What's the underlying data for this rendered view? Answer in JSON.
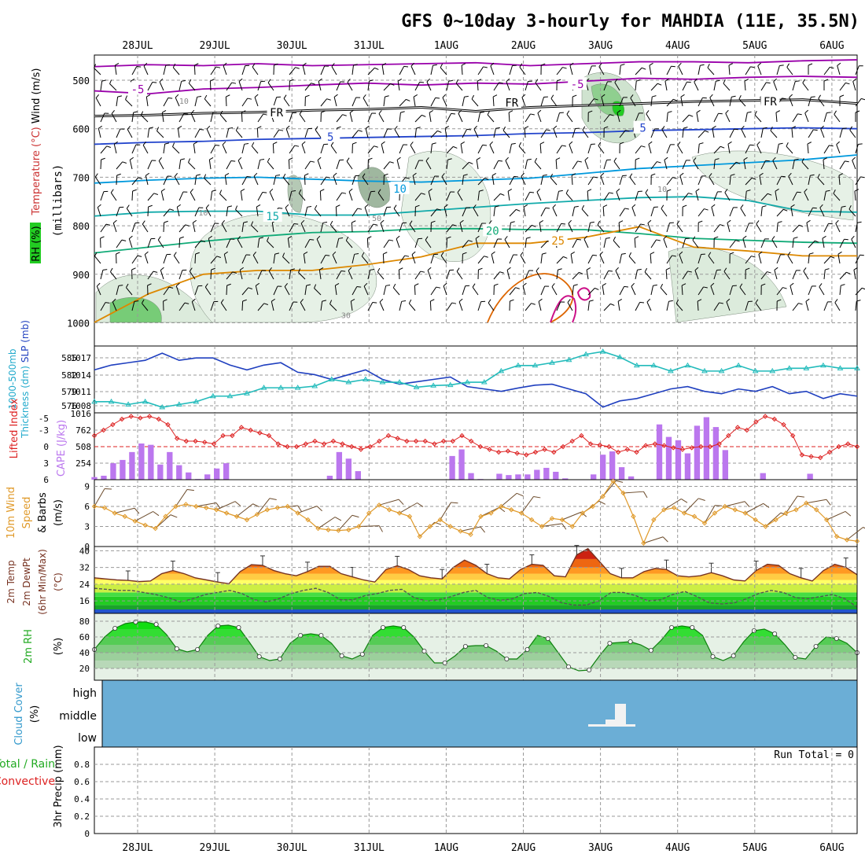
{
  "title": "GFS 0~10day 3-hourly for MAHDIA (11E, 35.5N)",
  "dates": [
    "28JUL",
    "29JUL",
    "30JUL",
    "31JUL",
    "1AUG",
    "2AUG",
    "3AUG",
    "4AUG",
    "5AUG",
    "6AUG"
  ],
  "colors": {
    "frame": "#000000",
    "grid": "#999999",
    "cloud": "#6baed6",
    "rh_dark": "#22cc22"
  },
  "chart_data": [
    {
      "type": "contour",
      "panel": "upper-air",
      "ylabel_parts": [
        "RH (%)",
        "Temperature (°C)",
        "Wind (m/s)",
        "(millibars)"
      ],
      "pressure_ticks": [
        "500",
        "600",
        "700",
        "800",
        "900",
        "1000"
      ],
      "pressure_range": [
        450,
        1050
      ],
      "isotherm_labels": [
        {
          "text": "-5",
          "value": -5,
          "day": 0.0,
          "p": 520,
          "color": "#9900aa"
        },
        {
          "text": "-5",
          "value": -5,
          "day": 5.7,
          "p": 510,
          "color": "#9900aa"
        },
        {
          "text": "FR",
          "value": 0,
          "day": 1.8,
          "p": 568,
          "color": "#000000"
        },
        {
          "text": "FR",
          "value": 0,
          "day": 4.85,
          "p": 548,
          "color": "#000000"
        },
        {
          "text": "FR",
          "value": 0,
          "day": 8.2,
          "p": 545,
          "color": "#000000"
        },
        {
          "text": "5",
          "value": 5,
          "day": 2.5,
          "p": 618,
          "color": "#2244cc"
        },
        {
          "text": "5",
          "value": 5,
          "day": 6.55,
          "p": 600,
          "color": "#2244cc"
        },
        {
          "text": "10",
          "value": 10,
          "day": 3.4,
          "p": 725,
          "color": "#0099dd"
        },
        {
          "text": "15",
          "value": 15,
          "day": 1.75,
          "p": 782,
          "color": "#11aaaa"
        },
        {
          "text": "20",
          "value": 20,
          "day": 4.6,
          "p": 812,
          "color": "#11aa77"
        },
        {
          "text": "25",
          "value": 25,
          "day": 5.45,
          "p": 832,
          "color": "#dd8800"
        }
      ],
      "isotherms": [
        {
          "value": -7,
          "color": "#9900aa",
          "p": [
            472,
            468,
            470,
            466,
            470,
            468,
            466,
            464,
            470,
            466,
            462,
            462,
            464,
            460,
            458
          ]
        },
        {
          "value": -5,
          "color": "#9900aa",
          "p": [
            522,
            528,
            518,
            515,
            510,
            506,
            510,
            506,
            508,
            502,
            496,
            498,
            494,
            492,
            494
          ]
        },
        {
          "value": 0,
          "color": "#000000",
          "p": [
            574,
            572,
            568,
            566,
            562,
            560,
            556,
            564,
            556,
            552,
            548,
            544,
            542,
            540,
            548
          ]
        },
        {
          "value": 5,
          "color": "#2244cc",
          "p": [
            632,
            628,
            626,
            622,
            620,
            618,
            616,
            614,
            610,
            608,
            604,
            602,
            600,
            598,
            600
          ]
        },
        {
          "value": 10,
          "color": "#0099dd",
          "p": [
            712,
            706,
            702,
            700,
            704,
            708,
            710,
            706,
            702,
            692,
            682,
            676,
            670,
            664,
            654
          ]
        },
        {
          "value": 15,
          "color": "#11aaaa",
          "p": [
            780,
            772,
            770,
            770,
            778,
            778,
            770,
            762,
            754,
            748,
            742,
            740,
            748,
            770,
            772
          ]
        },
        {
          "value": 20,
          "color": "#11aa77",
          "p": [
            856,
            844,
            832,
            822,
            814,
            812,
            806,
            806,
            808,
            808,
            816,
            826,
            830,
            834,
            836
          ]
        },
        {
          "value": 25,
          "color": "#dd8800",
          "p": [
            1040,
            940,
            900,
            892,
            892,
            880,
            864,
            836,
            836,
            824,
            802,
            844,
            852,
            862,
            862
          ]
        }
      ],
      "rh_blob_labels": [
        {
          "text": "10",
          "day": 0.6,
          "p": 542
        },
        {
          "text": "10",
          "day": 0.85,
          "p": 772
        },
        {
          "text": "50",
          "day": 3.1,
          "p": 784
        },
        {
          "text": "10",
          "day": 6.8,
          "p": 724
        },
        {
          "text": "30",
          "day": 2.7,
          "p": 984
        }
      ]
    },
    {
      "type": "line",
      "panel": "thickness-slp",
      "ylabel_parts": [
        "1000-500mb",
        "Thickness (dm)",
        "SLP (mb)"
      ],
      "left_ticks": [
        "585",
        "582",
        "579",
        "576"
      ],
      "right_ticks": [
        "1017",
        "1014",
        "1011",
        "1008"
      ],
      "series": [
        {
          "name": "SLP",
          "color": "#1f3fbf",
          "range": [
            1005,
            1019
          ],
          "values": [
            1014,
            1015,
            1015.5,
            1016,
            1017.5,
            1016,
            1016.5,
            1016.5,
            1015,
            1014,
            1015,
            1015.5,
            1013.5,
            1013,
            1012,
            1013,
            1014,
            1012,
            1011,
            1011.5,
            1012,
            1012.5,
            1010.5,
            1010,
            1009.5,
            1010.2,
            1010.8,
            1011,
            1010,
            1009,
            1006.2,
            1007.5,
            1008,
            1009,
            1010,
            1010.5,
            1009.5,
            1009,
            1010,
            1009.5,
            1010.5,
            1009,
            1009.5,
            1008,
            1009,
            1008.5
          ]
        },
        {
          "name": "Thickness",
          "color": "#22bbbb",
          "range": [
            575,
            587
          ],
          "values": [
            577,
            577,
            576.5,
            577,
            576,
            576.5,
            577,
            578,
            578,
            578.5,
            579.5,
            579.5,
            579.5,
            579.8,
            581,
            580.5,
            581,
            580.5,
            580.5,
            579.6,
            579.9,
            580,
            580.5,
            580.5,
            582.5,
            583.5,
            583.5,
            584,
            584.5,
            585.5,
            586,
            585,
            583.5,
            583.5,
            582.5,
            583.5,
            582.5,
            582.5,
            583.5,
            582.5,
            582.5,
            583,
            583,
            583.5,
            583,
            583
          ]
        }
      ]
    },
    {
      "type": "bar-line",
      "panel": "cape-li",
      "ylabel_parts": [
        "Lifted Index",
        "CAPE (J/kg)"
      ],
      "left_ticks": [
        "-5",
        "-3",
        "0",
        "3",
        "6"
      ],
      "right_ticks": [
        "762",
        "508",
        "254"
      ],
      "series": [
        {
          "name": "CAPE",
          "type": "bar",
          "color": "#bb77ee",
          "range": [
            0,
            1016
          ],
          "values": [
            40,
            60,
            250,
            300,
            420,
            550,
            530,
            230,
            420,
            220,
            110,
            10,
            80,
            170,
            250,
            0,
            0,
            0,
            0,
            0,
            0,
            0,
            0,
            0,
            0,
            60,
            420,
            320,
            130,
            0,
            0,
            0,
            0,
            0,
            0,
            0,
            0,
            0,
            360,
            460,
            100,
            10,
            0,
            90,
            70,
            80,
            80,
            150,
            180,
            120,
            20,
            0,
            0,
            80,
            380,
            430,
            190,
            50,
            0,
            0,
            840,
            650,
            600,
            400,
            820,
            950,
            800,
            450,
            0,
            0,
            0,
            100,
            0,
            0,
            0,
            0,
            90,
            0,
            0,
            0,
            0,
            0
          ]
        },
        {
          "name": "Lifted Index",
          "type": "line",
          "color": "#dd2222",
          "range": [
            6,
            -6
          ],
          "values": [
            -2,
            -3,
            -4,
            -5,
            -5.5,
            -5.2,
            -5.5,
            -5,
            -4,
            -1.5,
            -1,
            -1,
            -0.8,
            -0.5,
            -2,
            -2,
            -3.5,
            -3,
            -2.5,
            -2,
            -0.5,
            0,
            0,
            -0.5,
            -1,
            -0.5,
            -1,
            -0.5,
            0,
            0.5,
            0,
            -1,
            -2,
            -1.5,
            -1,
            -1,
            -1,
            -0.5,
            -1,
            -1,
            -2,
            -1,
            0,
            0.5,
            1,
            0.8,
            1.2,
            1.5,
            1,
            0.5,
            1,
            0,
            -1,
            -2,
            -0.5,
            -0.3,
            0,
            1,
            0.5,
            1,
            -0.2,
            -0.5,
            -0.2,
            0.2,
            0.5,
            0.2,
            0,
            0,
            -0.5,
            -2,
            -3.5,
            -3,
            -4.5,
            -5.5,
            -5,
            -4,
            -2,
            1.5,
            1.8,
            2,
            1,
            0,
            -0.5,
            0
          ]
        }
      ]
    },
    {
      "type": "line",
      "panel": "wind10m",
      "ylabel_parts": [
        "10m Wind",
        "Speed",
        "& Barbs",
        "(m/s)"
      ],
      "left_ticks": [
        "9",
        "6",
        "3",
        "0"
      ],
      "range": [
        0,
        10
      ],
      "series": [
        {
          "name": "Wind Speed",
          "color": "#e09a2a",
          "values": [
            6,
            5.8,
            5,
            4.5,
            3.8,
            3.2,
            2.7,
            4.5,
            6,
            6.3,
            6,
            5.8,
            5.5,
            5,
            4.5,
            4,
            4.8,
            5.5,
            5.8,
            6,
            5,
            4,
            2.7,
            2.5,
            2.4,
            2.5,
            3,
            5,
            6.2,
            5.5,
            5,
            4.5,
            1.5,
            3,
            4,
            3,
            2.3,
            1.8,
            4.5,
            5,
            6,
            5.5,
            5,
            4,
            3,
            4.2,
            4,
            3,
            5,
            6,
            7.5,
            9.8,
            8,
            4.5,
            0.5,
            4,
            5.5,
            5.8,
            5,
            4.5,
            3.5,
            5,
            6,
            5.5,
            5,
            4,
            3,
            4,
            5,
            5.5,
            6.5,
            5.5,
            4,
            1.5,
            1,
            0.8
          ]
        }
      ]
    },
    {
      "type": "area",
      "panel": "temp2m",
      "ylabel_parts": [
        "2m Temp",
        "2m DewPt",
        "(6hr Min/Max)",
        "(°C)"
      ],
      "left_ticks": [
        "40",
        "32",
        "24",
        "16"
      ],
      "range": [
        10,
        42
      ],
      "series": [
        {
          "name": "2m Temp",
          "color": "#773322",
          "values": [
            27,
            26.5,
            26,
            25.8,
            25.2,
            25.5,
            29,
            30.5,
            29,
            27,
            26,
            25,
            24.2,
            30,
            33.3,
            33,
            30.5,
            29,
            28,
            30,
            32.5,
            32.5,
            29,
            27.5,
            26,
            25,
            31,
            32.8,
            31,
            28,
            27,
            26.5,
            32,
            35.5,
            33,
            29,
            27,
            26.5,
            31,
            33.5,
            33,
            28,
            27.5,
            38,
            41,
            35,
            29,
            27,
            27,
            30,
            31.5,
            31,
            28,
            27.5,
            28,
            29.5,
            28,
            26,
            25.5,
            30.5,
            33.5,
            33,
            29,
            27,
            25.5,
            30.5,
            33.5,
            32,
            28.5
          ]
        },
        {
          "name": "2m DewPt",
          "color": "#555555",
          "values": [
            22,
            21.5,
            21,
            21,
            20,
            19,
            17.5,
            15.5,
            17,
            19,
            20,
            21,
            19.5,
            16.5,
            15.5,
            17,
            19.5,
            21,
            22,
            20,
            16.5,
            16.5,
            18.5,
            19.5,
            21,
            21.5,
            17.5,
            16,
            16.5,
            18,
            20,
            21,
            17.5,
            16.2,
            17,
            19.5,
            20,
            18,
            15,
            14,
            14,
            16,
            20,
            20,
            18.5,
            16,
            16.5,
            19,
            20.5,
            18,
            15,
            14.5,
            15,
            17,
            19.5,
            21,
            20,
            17.5,
            17,
            18,
            19,
            17,
            13
          ]
        }
      ]
    },
    {
      "type": "area",
      "panel": "rh2m",
      "ylabel_parts": [
        "2m RH",
        "(%)"
      ],
      "left_ticks": [
        "80",
        "60",
        "40",
        "20"
      ],
      "range": [
        5,
        90
      ],
      "series": [
        {
          "name": "2m RH",
          "color": "#22cc22",
          "values": [
            44,
            60,
            71,
            77,
            79,
            79,
            76,
            63,
            45,
            41,
            44,
            62,
            74,
            75,
            72,
            54,
            35,
            30,
            32,
            52,
            62,
            64,
            62,
            52,
            36,
            32,
            38,
            62,
            72,
            74,
            72,
            60,
            42,
            27,
            27,
            36,
            48,
            49,
            49,
            42,
            32,
            32,
            44,
            62,
            58,
            40,
            22,
            17,
            18,
            36,
            52,
            53,
            54,
            50,
            43,
            56,
            72,
            74,
            72,
            62,
            35,
            30,
            36,
            54,
            68,
            70,
            64,
            50,
            34,
            32,
            48,
            60,
            58,
            52,
            40
          ]
        }
      ]
    },
    {
      "type": "area",
      "panel": "cloud",
      "ylabel_parts": [
        "Cloud Cover",
        "(%)"
      ],
      "levels": [
        "high",
        "middle",
        "low"
      ],
      "series": [
        {
          "name": "Middle cloud",
          "color": "#ffffff",
          "values": [
            0.15,
            0.45,
            0.15
          ]
        }
      ]
    },
    {
      "type": "bar",
      "panel": "precip",
      "ylabel_parts": [
        "3hr Precip (mm)"
      ],
      "side_labels": [
        "Total / Rain",
        "Convective"
      ],
      "left_ticks": [
        "0.8",
        "0.6",
        "0.4",
        "0.2",
        "0"
      ],
      "run_total": "Run Total = 0",
      "values": []
    }
  ]
}
